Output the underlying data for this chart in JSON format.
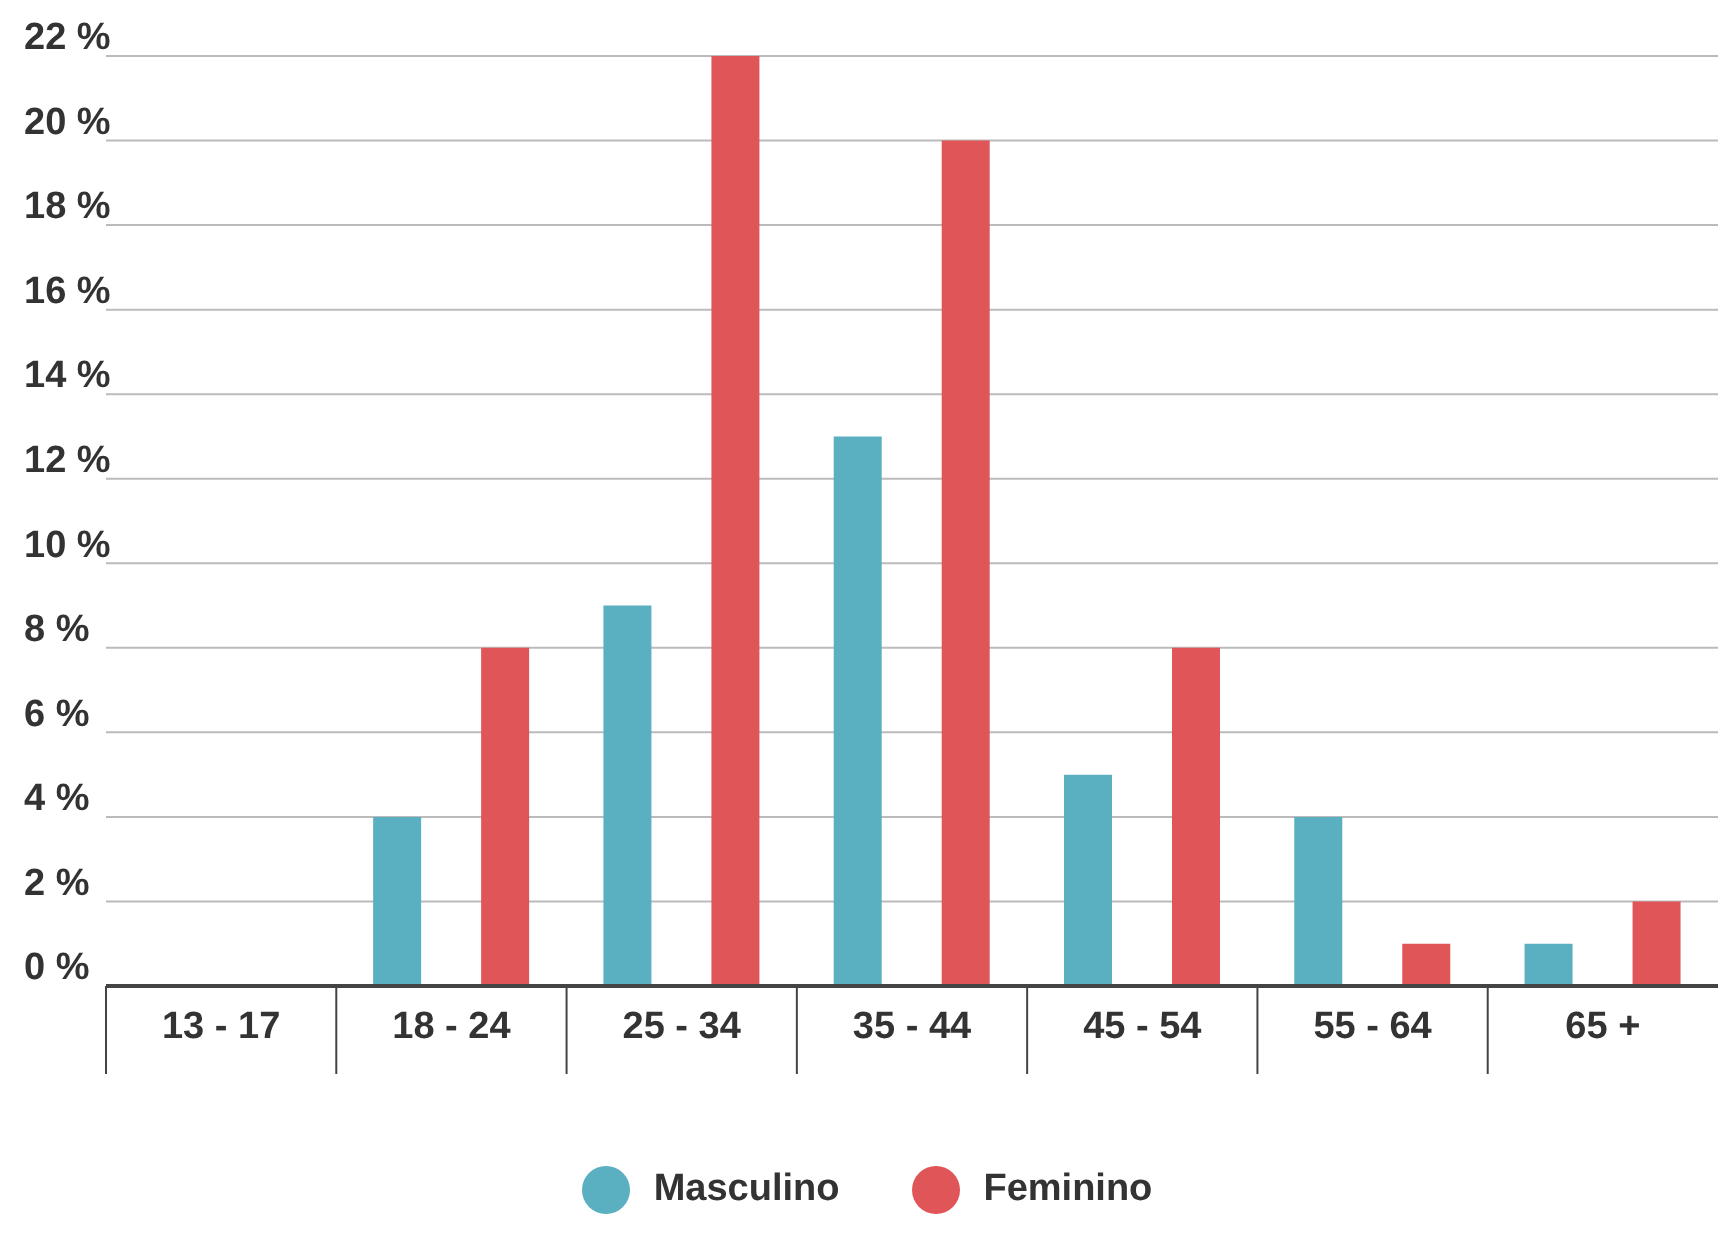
{
  "chart_data": {
    "type": "bar",
    "categories": [
      "13 - 17",
      "18 - 24",
      "25 - 34",
      "35 - 44",
      "45 - 54",
      "55 - 64",
      "65 +"
    ],
    "series": [
      {
        "name": "Masculino",
        "color": "#5aafc0",
        "values": [
          0,
          4,
          9,
          13,
          5,
          4,
          1
        ]
      },
      {
        "name": "Feminino",
        "color": "#e05558",
        "values": [
          0,
          8,
          22,
          20,
          8,
          1,
          2
        ]
      }
    ],
    "ylim": [
      0,
      22
    ],
    "yticks": [
      {
        "value": 0,
        "label": "0 %"
      },
      {
        "value": 2,
        "label": "2 %"
      },
      {
        "value": 4,
        "label": "4 %"
      },
      {
        "value": 6,
        "label": "6 %"
      },
      {
        "value": 8,
        "label": "8 %"
      },
      {
        "value": 10,
        "label": "10 %"
      },
      {
        "value": 12,
        "label": "12 %"
      },
      {
        "value": 14,
        "label": "14 %"
      },
      {
        "value": 16,
        "label": "16 %"
      },
      {
        "value": 18,
        "label": "18 %"
      },
      {
        "value": 20,
        "label": "20 %"
      },
      {
        "value": 22,
        "label": "22 %"
      }
    ],
    "grid": "y",
    "legend": "bottom"
  }
}
